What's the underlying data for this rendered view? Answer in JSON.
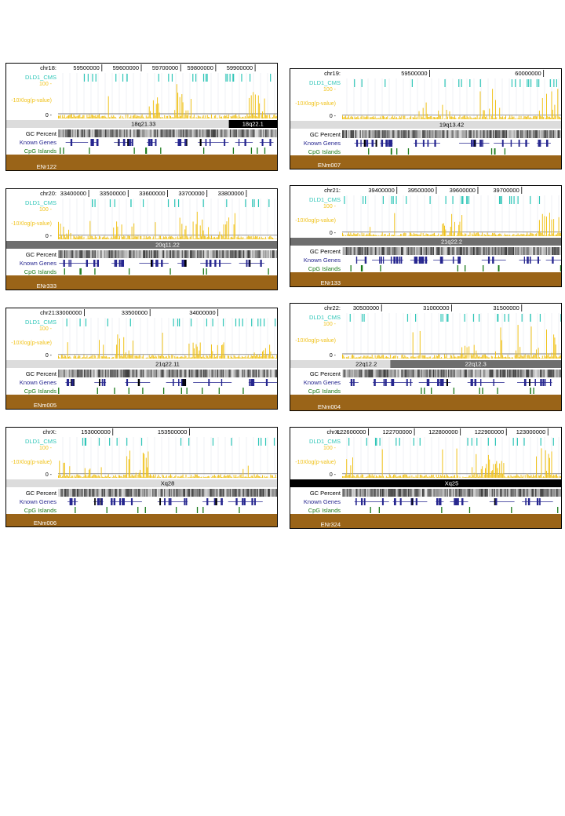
{
  "labels": {
    "track": "DLD1_CMS",
    "pval": "-10Xlog(p-value)",
    "y_top": "100 -",
    "y_bot": "0 -",
    "gc": "GC Percent",
    "genes": "Known Genes",
    "cpg": "CpG Islands"
  },
  "colors": {
    "cms": "#2fc6b8",
    "signal": "#f0c21a",
    "genes": "#26268f",
    "cpg": "#1a7a1a",
    "encode": "#9a6418",
    "band_light": "#dcdcdc",
    "band_mid": "#6e6e6e",
    "band_dark": "#000000"
  },
  "panels": [
    {
      "chrom": "chr18:",
      "ticks": [
        "59500000",
        "59600000",
        "59700000",
        "59800000",
        "59900000"
      ],
      "tick_pos": [
        0.2,
        0.38,
        0.56,
        0.72,
        0.9
      ],
      "bands": [
        {
          "label": "18q21.33",
          "start": 0,
          "end": 0.78,
          "shade": "light"
        },
        {
          "label": "18q22.1",
          "start": 0.78,
          "end": 1,
          "shade": "dark"
        }
      ],
      "region": "ENr122",
      "seed": 3
    },
    {
      "chrom": "chr19:",
      "ticks": [
        "59500000",
        "60000000"
      ],
      "tick_pos": [
        0.4,
        0.92
      ],
      "bands": [
        {
          "label": "19q13.42",
          "start": 0,
          "end": 1,
          "shade": "light"
        }
      ],
      "region": "ENm007",
      "seed": 7
    },
    {
      "chrom": "chr20:",
      "ticks": [
        "33400000",
        "33500000",
        "33600000",
        "33700000",
        "33800000"
      ],
      "tick_pos": [
        0.14,
        0.32,
        0.5,
        0.68,
        0.86
      ],
      "bands": [
        {
          "label": "20q11.22",
          "start": 0,
          "end": 1,
          "shade": "mid"
        }
      ],
      "region": "ENr333",
      "seed": 11
    },
    {
      "chrom": "chr21:",
      "ticks": [
        "39400000",
        "39500000",
        "39600000",
        "39700000"
      ],
      "tick_pos": [
        0.25,
        0.43,
        0.62,
        0.82
      ],
      "bands": [
        {
          "label": "21q22.2",
          "start": 0,
          "end": 1,
          "shade": "mid"
        }
      ],
      "region": "ENr133",
      "seed": 13
    },
    {
      "chrom": "chr21:",
      "ticks": [
        "33000000",
        "33500000",
        "34000000"
      ],
      "tick_pos": [
        0.12,
        0.42,
        0.73
      ],
      "bands": [
        {
          "label": "21q22.11",
          "start": 0,
          "end": 1,
          "shade": "light"
        }
      ],
      "region": "ENm005",
      "seed": 17
    },
    {
      "chrom": "chr22:",
      "ticks": [
        "30500000",
        "31000000",
        "31500000"
      ],
      "tick_pos": [
        0.18,
        0.5,
        0.82
      ],
      "bands": [
        {
          "label": "22q12.2",
          "start": 0,
          "end": 0.22,
          "shade": "light"
        },
        {
          "label": "22q12.3",
          "start": 0.22,
          "end": 1,
          "shade": "mid"
        }
      ],
      "region": "ENm004",
      "seed": 19
    },
    {
      "chrom": "chrX:",
      "ticks": [
        "153000000",
        "153500000"
      ],
      "tick_pos": [
        0.25,
        0.6
      ],
      "bands": [
        {
          "label": "Xq28",
          "start": 0,
          "end": 1,
          "shade": "light"
        }
      ],
      "region": "ENm006",
      "seed": 23
    },
    {
      "chrom": "chrX:",
      "ticks": [
        "122600000",
        "122700000",
        "122800000",
        "122900000",
        "123000000"
      ],
      "tick_pos": [
        0.12,
        0.33,
        0.54,
        0.75,
        0.94
      ],
      "bands": [
        {
          "label": "Xq25",
          "start": 0,
          "end": 1,
          "shade": "dark"
        }
      ],
      "region": "ENr324",
      "seed": 29
    }
  ]
}
